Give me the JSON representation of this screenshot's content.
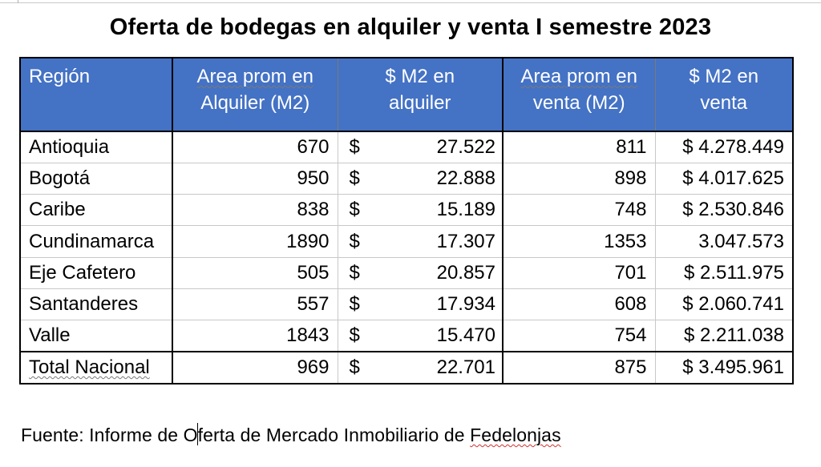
{
  "title": "Oferta de bodegas en alquiler y venta I semestre 2023",
  "table": {
    "headers": {
      "region": "Región",
      "area_alquiler_a": "Area prom en",
      "area_alquiler_b": "Alquiler (M2)",
      "m2_alquiler_a": "$ M2 en",
      "m2_alquiler_b": "alquiler",
      "area_venta_a": "Area prom en",
      "area_venta_b": "venta (M2)",
      "m2_venta_a": "$ M2 en",
      "m2_venta_b": "venta"
    },
    "currency_symbol": "$",
    "rows": [
      {
        "region": "Antioquia",
        "area_alquiler": "670",
        "m2_alquiler": "27.522",
        "area_venta": "811",
        "m2_venta": "$ 4.278.449"
      },
      {
        "region": "Bogotá",
        "area_alquiler": "950",
        "m2_alquiler": "22.888",
        "area_venta": "898",
        "m2_venta": "$ 4.017.625"
      },
      {
        "region": "Caribe",
        "area_alquiler": "838",
        "m2_alquiler": "15.189",
        "area_venta": "748",
        "m2_venta": "$ 2.530.846"
      },
      {
        "region": "Cundinamarca",
        "area_alquiler": "1890",
        "m2_alquiler": "17.307",
        "area_venta": "1353",
        "m2_venta": "3.047.573"
      },
      {
        "region": "Eje Cafetero",
        "area_alquiler": "505",
        "m2_alquiler": "20.857",
        "area_venta": "701",
        "m2_venta": "$ 2.511.975"
      },
      {
        "region": "Santanderes",
        "area_alquiler": "557",
        "m2_alquiler": "17.934",
        "area_venta": "608",
        "m2_venta": "$ 2.060.741"
      },
      {
        "region": "Valle",
        "area_alquiler": "1843",
        "m2_alquiler": "15.470",
        "area_venta": "754",
        "m2_venta": "$ 2.211.038"
      }
    ],
    "total": {
      "region": "Total Nacional",
      "area_alquiler": "969",
      "m2_alquiler": "22.701",
      "area_venta": "875",
      "m2_venta": "$ 3.495.961"
    }
  },
  "source": {
    "part1": "Fuente: Informe de O",
    "part2": "ferta de Mercado Inmobiliario de ",
    "part3": "Fedelonjas"
  },
  "colors": {
    "header_bg": "#4472c4",
    "header_text": "#ffffff"
  }
}
